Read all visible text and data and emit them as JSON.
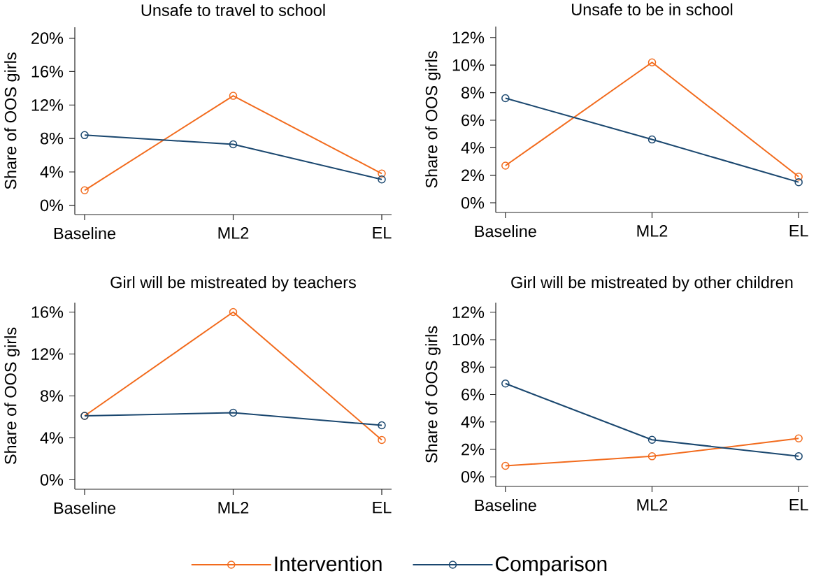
{
  "chart_data": [
    {
      "type": "line",
      "title": "Unsafe to travel to school",
      "ylabel": "Share of OOS girls",
      "categories": [
        "Baseline",
        "ML2",
        "EL"
      ],
      "series": [
        {
          "name": "Intervention",
          "color": "#f26b1d",
          "values": [
            1.8,
            13.1,
            3.8
          ]
        },
        {
          "name": "Comparison",
          "color": "#1a476f",
          "values": [
            8.4,
            7.3,
            3.1
          ]
        }
      ],
      "ylim": [
        -1.1,
        21.3
      ],
      "yticks": [
        {
          "value": 0,
          "label": "0%"
        },
        {
          "value": 4,
          "label": "4%"
        },
        {
          "value": 8,
          "label": "8%"
        },
        {
          "value": 12,
          "label": "12%"
        },
        {
          "value": 16,
          "label": "16%"
        },
        {
          "value": 20,
          "label": "20%"
        }
      ],
      "marker": "circle"
    },
    {
      "type": "line",
      "title": "Unsafe to be in school",
      "ylabel": "Share of OOS girls",
      "categories": [
        "Baseline",
        "ML2",
        "EL"
      ],
      "series": [
        {
          "name": "Intervention",
          "color": "#f26b1d",
          "values": [
            2.7,
            10.2,
            1.9
          ]
        },
        {
          "name": "Comparison",
          "color": "#1a476f",
          "values": [
            7.6,
            4.6,
            1.5
          ]
        }
      ],
      "ylim": [
        -0.7,
        12.8
      ],
      "yticks": [
        {
          "value": 0,
          "label": "0%"
        },
        {
          "value": 2,
          "label": "2%"
        },
        {
          "value": 4,
          "label": "4%"
        },
        {
          "value": 6,
          "label": "6%"
        },
        {
          "value": 8,
          "label": "8%"
        },
        {
          "value": 10,
          "label": "10%"
        },
        {
          "value": 12,
          "label": "12%"
        }
      ],
      "marker": "circle"
    },
    {
      "type": "line",
      "title": "Girl will be mistreated by teachers",
      "ylabel": "Share of OOS girls",
      "categories": [
        "Baseline",
        "ML2",
        "EL"
      ],
      "series": [
        {
          "name": "Intervention",
          "color": "#f26b1d",
          "values": [
            6.1,
            16.0,
            3.8
          ]
        },
        {
          "name": "Comparison",
          "color": "#1a476f",
          "values": [
            6.1,
            6.4,
            5.2
          ]
        }
      ],
      "ylim": [
        -0.9,
        16.9
      ],
      "yticks": [
        {
          "value": 0,
          "label": "0%"
        },
        {
          "value": 4,
          "label": "4%"
        },
        {
          "value": 8,
          "label": "8%"
        },
        {
          "value": 12,
          "label": "12%"
        },
        {
          "value": 16,
          "label": "16%"
        }
      ],
      "marker": "circle"
    },
    {
      "type": "line",
      "title": "Girl will be mistreated by other children",
      "ylabel": "Share of OOS girls",
      "categories": [
        "Baseline",
        "ML2",
        "EL"
      ],
      "series": [
        {
          "name": "Intervention",
          "color": "#f26b1d",
          "values": [
            0.8,
            1.5,
            2.8
          ]
        },
        {
          "name": "Comparison",
          "color": "#1a476f",
          "values": [
            6.8,
            2.7,
            1.5
          ]
        }
      ],
      "ylim": [
        -0.7,
        12.7
      ],
      "yticks": [
        {
          "value": 0,
          "label": "0%"
        },
        {
          "value": 2,
          "label": "2%"
        },
        {
          "value": 4,
          "label": "4%"
        },
        {
          "value": 6,
          "label": "6%"
        },
        {
          "value": 8,
          "label": "8%"
        },
        {
          "value": 10,
          "label": "10%"
        },
        {
          "value": 12,
          "label": "12%"
        }
      ],
      "marker": "circle",
      "legend": "bottom"
    }
  ]
}
